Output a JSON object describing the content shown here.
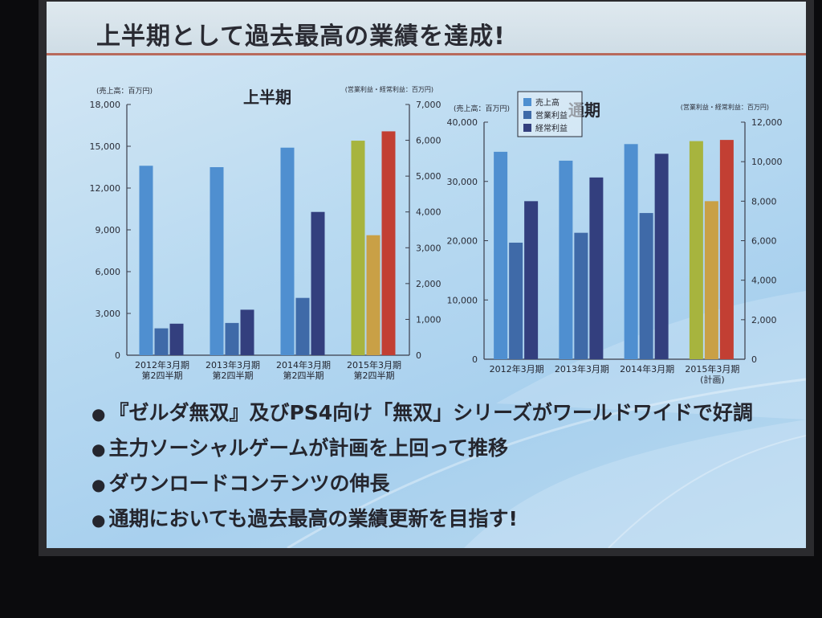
{
  "slide": {
    "title": "上半期として過去最高の業績を達成!",
    "bullets": [
      "『ゼルダ無双』及びPS4向け「無双」シリーズがワールドワイドで好調",
      "主力ソーシャルゲームが計画を上回って推移",
      "ダウンロードコンテンツの伸長",
      "通期においても過去最高の業績更新を目指す!"
    ]
  },
  "colors": {
    "sales": "#4f8fd0",
    "operating_income": "#3f6aa8",
    "ordinary_income": "#333f7e",
    "sales_forecast": "#a7b43e",
    "operating_income_forecast": "#c9a046",
    "ordinary_income_forecast": "#c23f33"
  },
  "chart_data": [
    {
      "type": "bar",
      "title": "上半期",
      "left_unit": "(売上高：百万円)",
      "right_unit": "(営業利益・経常利益：百万円)",
      "categories": [
        [
          "2012年3月期",
          "第2四半期"
        ],
        [
          "2013年3月期",
          "第2四半期"
        ],
        [
          "2014年3月期",
          "第2四半期"
        ],
        [
          "2015年3月期",
          "第2四半期"
        ]
      ],
      "left_axis": {
        "ylim": [
          0,
          18000
        ],
        "ticks": [
          "0",
          "3,000",
          "6,000",
          "9,000",
          "12,000",
          "15,000",
          "18,000"
        ]
      },
      "right_axis": {
        "ylim": [
          0,
          7000
        ],
        "ticks": [
          "0",
          "1,000",
          "2,000",
          "3,000",
          "4,000",
          "5,000",
          "6,000",
          "7,000"
        ]
      },
      "series": [
        {
          "name": "売上高",
          "axis": "left",
          "values": [
            13600,
            13500,
            14900,
            15400
          ]
        },
        {
          "name": "営業利益",
          "axis": "right",
          "values": [
            750,
            900,
            1600,
            3350
          ]
        },
        {
          "name": "経常利益",
          "axis": "right",
          "values": [
            880,
            1270,
            4000,
            6250
          ]
        }
      ],
      "forecast_category_index": 3,
      "grid": false
    },
    {
      "type": "bar",
      "title": "通期",
      "left_unit": "(売上高：百万円)",
      "right_unit": "(営業利益・経常利益：百万円)",
      "categories": [
        [
          "2012年3月期"
        ],
        [
          "2013年3月期"
        ],
        [
          "2014年3月期"
        ],
        [
          "2015年3月期",
          "(計画)"
        ]
      ],
      "left_axis": {
        "ylim": [
          0,
          40000
        ],
        "ticks": [
          "0",
          "10,000",
          "20,000",
          "30,000",
          "40,000"
        ]
      },
      "right_axis": {
        "ylim": [
          0,
          12000
        ],
        "ticks": [
          "0",
          "2,000",
          "4,000",
          "6,000",
          "8,000",
          "10,000",
          "12,000"
        ]
      },
      "series": [
        {
          "name": "売上高",
          "axis": "left",
          "values": [
            35000,
            33500,
            36300,
            36800
          ]
        },
        {
          "name": "営業利益",
          "axis": "right",
          "values": [
            5900,
            6400,
            7400,
            8000
          ]
        },
        {
          "name": "経常利益",
          "axis": "right",
          "values": [
            8000,
            9200,
            10400,
            11100
          ]
        }
      ],
      "forecast_category_index": 3,
      "legend": {
        "placement": "top-left",
        "entries": [
          "売上高",
          "営業利益",
          "経常利益"
        ]
      },
      "grid": false
    }
  ]
}
